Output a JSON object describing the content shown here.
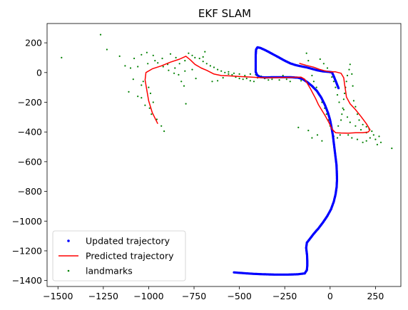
{
  "chart_data": {
    "type": "scatter",
    "title": "EKF SLAM",
    "xlabel": "",
    "ylabel": "",
    "xlim": [
      -1560,
      390
    ],
    "ylim": [
      -1440,
      330
    ],
    "xticks": [
      -1500,
      -1250,
      -1000,
      -750,
      -500,
      -250,
      0,
      250
    ],
    "yticks": [
      200,
      0,
      -200,
      -400,
      -600,
      -800,
      -1000,
      -1200,
      -1400
    ],
    "grid": false,
    "legend_position": "lower-left",
    "series": [
      {
        "name": "Updated trajectory",
        "kind": "dots",
        "color": "#0000ff",
        "points": [
          [
            -530,
            -1345
          ],
          [
            -480,
            -1350
          ],
          [
            -420,
            -1355
          ],
          [
            -360,
            -1358
          ],
          [
            -300,
            -1360
          ],
          [
            -240,
            -1360
          ],
          [
            -180,
            -1358
          ],
          [
            -140,
            -1352
          ],
          [
            -128,
            -1330
          ],
          [
            -126,
            -1300
          ],
          [
            -126,
            -1265
          ],
          [
            -127,
            -1230
          ],
          [
            -130,
            -1200
          ],
          [
            -132,
            -1180
          ],
          [
            -128,
            -1145
          ],
          [
            -112,
            -1120
          ],
          [
            -90,
            -1085
          ],
          [
            -65,
            -1050
          ],
          [
            -40,
            -1010
          ],
          [
            -15,
            -965
          ],
          [
            5,
            -920
          ],
          [
            20,
            -870
          ],
          [
            30,
            -820
          ],
          [
            36,
            -770
          ],
          [
            38,
            -720
          ],
          [
            37,
            -670
          ],
          [
            35,
            -620
          ],
          [
            30,
            -570
          ],
          [
            25,
            -520
          ],
          [
            20,
            -470
          ],
          [
            15,
            -420
          ],
          [
            8,
            -370
          ],
          [
            0,
            -320
          ],
          [
            -12,
            -270
          ],
          [
            -28,
            -220
          ],
          [
            -48,
            -170
          ],
          [
            -72,
            -125
          ],
          [
            -100,
            -90
          ],
          [
            -125,
            -65
          ],
          [
            -150,
            -45
          ],
          [
            -175,
            -35
          ],
          [
            -210,
            -32
          ],
          [
            -250,
            -31
          ],
          [
            -290,
            -31
          ],
          [
            -330,
            -32
          ],
          [
            -360,
            -33
          ],
          [
            -385,
            -30
          ],
          [
            -402,
            -18
          ],
          [
            -410,
            5
          ],
          [
            -410,
            40
          ],
          [
            -410,
            80
          ],
          [
            -410,
            120
          ],
          [
            -408,
            155
          ],
          [
            -400,
            170
          ],
          [
            -385,
            166
          ],
          [
            -365,
            155
          ],
          [
            -340,
            140
          ],
          [
            -310,
            120
          ],
          [
            -280,
            100
          ],
          [
            -250,
            80
          ],
          [
            -220,
            62
          ],
          [
            -190,
            50
          ],
          [
            -160,
            42
          ],
          [
            -130,
            35
          ],
          [
            -100,
            25
          ],
          [
            -70,
            15
          ],
          [
            -40,
            8
          ],
          [
            -10,
            5
          ],
          [
            10,
            2
          ],
          [
            22,
            -30
          ],
          [
            35,
            -70
          ],
          [
            48,
            -110
          ]
        ]
      },
      {
        "name": "Predicted trajectory",
        "kind": "line",
        "color": "#ff0000",
        "points": [
          [
            -950,
            -345
          ],
          [
            -980,
            -270
          ],
          [
            -1000,
            -190
          ],
          [
            -1010,
            -120
          ],
          [
            -1020,
            -50
          ],
          [
            -1015,
            0
          ],
          [
            -980,
            25
          ],
          [
            -930,
            45
          ],
          [
            -880,
            70
          ],
          [
            -830,
            90
          ],
          [
            -795,
            110
          ],
          [
            -770,
            85
          ],
          [
            -745,
            55
          ],
          [
            -710,
            30
          ],
          [
            -680,
            15
          ],
          [
            -640,
            -10
          ],
          [
            -600,
            -20
          ],
          [
            -560,
            -22
          ],
          [
            -520,
            -25
          ],
          [
            -480,
            -28
          ],
          [
            -440,
            -30
          ],
          [
            -400,
            -33
          ],
          [
            -360,
            -35
          ],
          [
            -320,
            -35
          ],
          [
            -280,
            -34
          ],
          [
            -240,
            -33
          ],
          [
            -200,
            -32
          ],
          [
            -160,
            -31
          ],
          [
            -140,
            -45
          ],
          [
            -125,
            -75
          ],
          [
            -110,
            -105
          ],
          [
            -95,
            -140
          ],
          [
            -80,
            -175
          ],
          [
            -65,
            -215
          ],
          [
            -45,
            -255
          ],
          [
            -25,
            -295
          ],
          [
            -5,
            -340
          ],
          [
            10,
            -380
          ],
          [
            30,
            -405
          ],
          [
            60,
            -407
          ],
          [
            100,
            -408
          ],
          [
            140,
            -405
          ],
          [
            180,
            -405
          ],
          [
            210,
            -400
          ],
          [
            220,
            -385
          ],
          [
            200,
            -345
          ],
          [
            170,
            -295
          ],
          [
            140,
            -250
          ],
          [
            110,
            -210
          ],
          [
            90,
            -165
          ],
          [
            85,
            -120
          ],
          [
            80,
            -80
          ],
          [
            75,
            -35
          ],
          [
            60,
            -5
          ],
          [
            30,
            5
          ],
          [
            0,
            5
          ],
          [
            -30,
            12
          ],
          [
            -60,
            22
          ],
          [
            -90,
            36
          ],
          [
            -130,
            48
          ],
          [
            -170,
            62
          ]
        ]
      },
      {
        "name": "landmarks",
        "kind": "dots",
        "color": "#008000",
        "points": [
          [
            -1480,
            100
          ],
          [
            -1265,
            255
          ],
          [
            -1230,
            155
          ],
          [
            -1160,
            110
          ],
          [
            -1130,
            45
          ],
          [
            -1100,
            30
          ],
          [
            -1085,
            -45
          ],
          [
            -1110,
            -130
          ],
          [
            -1060,
            -160
          ],
          [
            -1040,
            -170
          ],
          [
            -1020,
            -220
          ],
          [
            -995,
            -240
          ],
          [
            -985,
            -280
          ],
          [
            -955,
            -315
          ],
          [
            -930,
            -360
          ],
          [
            -915,
            -395
          ],
          [
            -1040,
            -85
          ],
          [
            -1030,
            -60
          ],
          [
            -1000,
            -100
          ],
          [
            -990,
            -140
          ],
          [
            -975,
            -200
          ],
          [
            -1060,
            40
          ],
          [
            -1005,
            60
          ],
          [
            -965,
            80
          ],
          [
            -925,
            95
          ],
          [
            -895,
            55
          ],
          [
            -855,
            30
          ],
          [
            -835,
            -15
          ],
          [
            -820,
            -60
          ],
          [
            -805,
            -90
          ],
          [
            -795,
            -210
          ],
          [
            -1080,
            95
          ],
          [
            -1040,
            120
          ],
          [
            -1010,
            135
          ],
          [
            -975,
            115
          ],
          [
            -950,
            65
          ],
          [
            -920,
            40
          ],
          [
            -890,
            15
          ],
          [
            -860,
            -5
          ],
          [
            -800,
            80
          ],
          [
            -780,
            130
          ],
          [
            -760,
            115
          ],
          [
            -745,
            100
          ],
          [
            -720,
            95
          ],
          [
            -700,
            75
          ],
          [
            -680,
            60
          ],
          [
            -660,
            45
          ],
          [
            -640,
            35
          ],
          [
            -620,
            20
          ],
          [
            -600,
            10
          ],
          [
            -580,
            0
          ],
          [
            -560,
            -10
          ],
          [
            -540,
            -15
          ],
          [
            -520,
            -30
          ],
          [
            -500,
            -40
          ],
          [
            -480,
            -45
          ],
          [
            -460,
            -40
          ],
          [
            -440,
            -55
          ],
          [
            -420,
            -60
          ],
          [
            -400,
            -35
          ],
          [
            -380,
            -25
          ],
          [
            -360,
            -40
          ],
          [
            -340,
            -50
          ],
          [
            -320,
            -45
          ],
          [
            -300,
            -30
          ],
          [
            -280,
            -50
          ],
          [
            -260,
            -20
          ],
          [
            -240,
            -45
          ],
          [
            -220,
            -60
          ],
          [
            -200,
            -30
          ],
          [
            -180,
            -35
          ],
          [
            -160,
            -55
          ],
          [
            -650,
            -60
          ],
          [
            -620,
            -55
          ],
          [
            -590,
            -35
          ],
          [
            -560,
            5
          ],
          [
            -530,
            -5
          ],
          [
            -500,
            -10
          ],
          [
            -470,
            -20
          ],
          [
            -440,
            -10
          ],
          [
            -410,
            -15
          ],
          [
            -740,
            -40
          ],
          [
            -760,
            20
          ],
          [
            -800,
            10
          ],
          [
            -830,
            60
          ],
          [
            -850,
            100
          ],
          [
            -880,
            125
          ],
          [
            -700,
            105
          ],
          [
            -690,
            140
          ],
          [
            -130,
            130
          ],
          [
            -120,
            80
          ],
          [
            -100,
            -20
          ],
          [
            -90,
            -60
          ],
          [
            -75,
            -100
          ],
          [
            -60,
            -150
          ],
          [
            -45,
            -200
          ],
          [
            -30,
            -240
          ],
          [
            -20,
            -280
          ],
          [
            -10,
            -320
          ],
          [
            0,
            -360
          ],
          [
            15,
            -395
          ],
          [
            -45,
            -460
          ],
          [
            -100,
            -440
          ],
          [
            -120,
            -390
          ],
          [
            -175,
            -370
          ],
          [
            -70,
            -420
          ],
          [
            20,
            -430
          ],
          [
            40,
            -440
          ],
          [
            55,
            -420
          ],
          [
            45,
            -360
          ],
          [
            60,
            -320
          ],
          [
            65,
            -280
          ],
          [
            70,
            -240
          ],
          [
            75,
            -180
          ],
          [
            80,
            -140
          ],
          [
            85,
            -100
          ],
          [
            90,
            -60
          ],
          [
            95,
            -20
          ],
          [
            105,
            20
          ],
          [
            110,
            55
          ],
          [
            120,
            -10
          ],
          [
            125,
            -90
          ],
          [
            130,
            -190
          ],
          [
            140,
            -230
          ],
          [
            150,
            -280
          ],
          [
            160,
            -320
          ],
          [
            180,
            -350
          ],
          [
            200,
            -365
          ],
          [
            215,
            -380
          ],
          [
            230,
            -395
          ],
          [
            240,
            -420
          ],
          [
            220,
            -440
          ],
          [
            200,
            -460
          ],
          [
            180,
            -470
          ],
          [
            150,
            -450
          ],
          [
            120,
            -440
          ],
          [
            100,
            -420
          ],
          [
            250,
            -450
          ],
          [
            270,
            -430
          ],
          [
            340,
            -510
          ],
          [
            280,
            -470
          ],
          [
            260,
            -485
          ],
          [
            200,
            -405
          ],
          [
            170,
            -385
          ],
          [
            140,
            -360
          ],
          [
            110,
            -335
          ],
          [
            95,
            -300
          ],
          [
            75,
            -250
          ],
          [
            50,
            -200
          ],
          [
            40,
            -150
          ],
          [
            30,
            -100
          ],
          [
            20,
            -60
          ],
          [
            10,
            -30
          ],
          [
            0,
            0
          ],
          [
            -15,
            30
          ],
          [
            -35,
            60
          ],
          [
            -55,
            90
          ]
        ]
      }
    ]
  }
}
